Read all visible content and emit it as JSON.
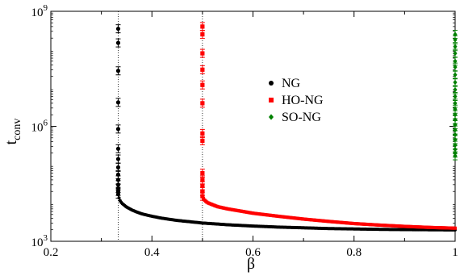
{
  "chart_data": {
    "type": "scatter",
    "title": "",
    "xlabel": "β",
    "ylabel": {
      "base": "t",
      "sub": "conv"
    },
    "xlim": [
      0.2,
      1.0
    ],
    "ylim": [
      1000,
      1000000000
    ],
    "yscale": "log",
    "x_ticks": [
      {
        "value": 0.2,
        "label": "0.2"
      },
      {
        "value": 0.4,
        "label": "0.4"
      },
      {
        "value": 0.6,
        "label": "0.6"
      },
      {
        "value": 0.8,
        "label": "0.8"
      },
      {
        "value": 1.0,
        "label": "1"
      }
    ],
    "y_ticks": [
      {
        "value": 1000,
        "base": "10",
        "exp": "3"
      },
      {
        "value": 1000000,
        "base": "10",
        "exp": "6"
      },
      {
        "value": 1000000000,
        "base": "10",
        "exp": "9"
      }
    ],
    "reference_lines_x": [
      0.3333,
      0.5,
      1.0
    ],
    "legend": {
      "placement": "center-right"
    },
    "series": [
      {
        "name": "NG",
        "color": "#000000",
        "marker": "circle",
        "vertical_points": [
          {
            "x": 0.3333,
            "y": [
              350000000,
              150000000,
              28000000,
              4200000,
              850000,
              260000,
              140000,
              85000,
              55000,
              40000,
              30000,
              24000,
              20000,
              17000
            ]
          }
        ],
        "curve": {
          "x": [
            0.335,
            0.337,
            0.34,
            0.345,
            0.35,
            0.36,
            0.37,
            0.38,
            0.4,
            0.42,
            0.45,
            0.5,
            0.55,
            0.6,
            0.65,
            0.7,
            0.75,
            0.8,
            0.85,
            0.9,
            0.95,
            1.0
          ],
          "y": [
            13500,
            11500,
            10000,
            8800,
            7800,
            6600,
            5800,
            5200,
            4500,
            4000,
            3500,
            3000,
            2700,
            2500,
            2350,
            2250,
            2150,
            2100,
            2050,
            2020,
            2000,
            1980
          ]
        }
      },
      {
        "name": "HO-NG",
        "color": "#ff0000",
        "marker": "square",
        "vertical_points": [
          {
            "x": 0.5,
            "y": [
              400000000,
              250000000,
              80000000,
              30000000,
              12000000,
              4000000,
              650000,
              420000,
              60000,
              40000,
              28000,
              20000,
              15000
            ]
          }
        ],
        "curve": {
          "x": [
            0.502,
            0.505,
            0.51,
            0.52,
            0.53,
            0.55,
            0.58,
            0.6,
            0.65,
            0.7,
            0.75,
            0.8,
            0.85,
            0.9,
            0.95,
            1.0
          ],
          "y": [
            13000,
            11500,
            10200,
            9000,
            8000,
            7000,
            6000,
            5400,
            4500,
            3800,
            3300,
            2900,
            2650,
            2450,
            2300,
            2200
          ]
        }
      },
      {
        "name": "SO-NG",
        "color": "#008000",
        "marker": "diamond",
        "vertical_points": [
          {
            "x": 1.0,
            "y": [
              250000000,
              180000000,
              120000000,
              80000000,
              50000000,
              35000000,
              22000000,
              14000000,
              9000000,
              6000000,
              4000000,
              2800000,
              2000000,
              1500000,
              1100000,
              800000,
              600000,
              450000,
              320000,
              250000,
              200000,
              170000
            ]
          }
        ]
      }
    ]
  }
}
